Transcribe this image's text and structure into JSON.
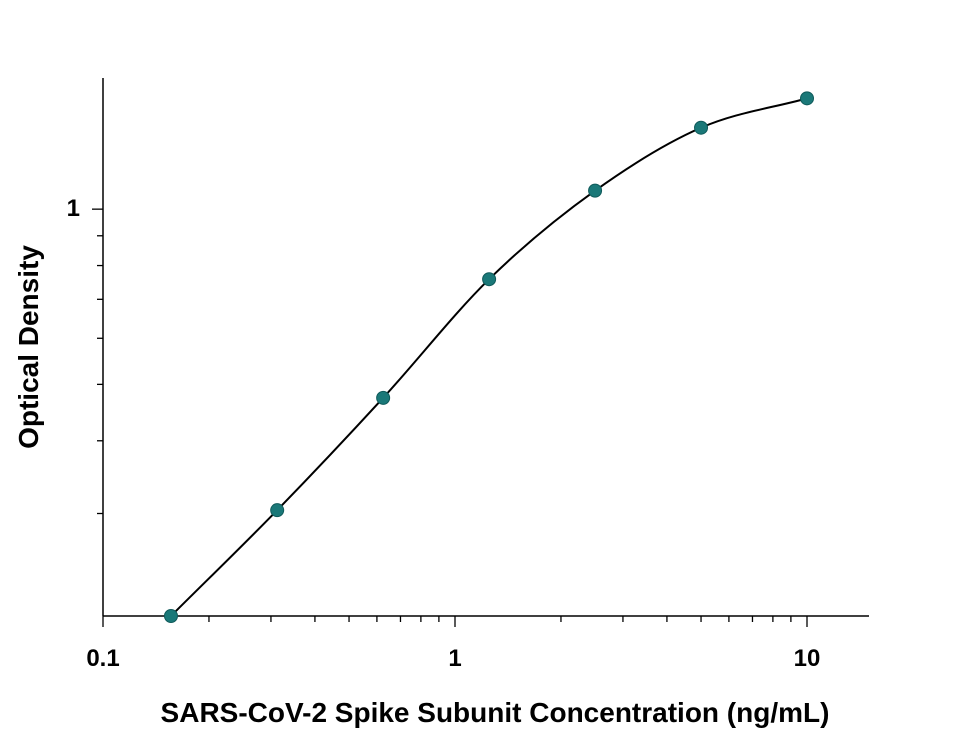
{
  "chart_data": {
    "type": "scatter",
    "title": "",
    "xlabel": "SARS-CoV-2 Spike Subunit Concentration (ng/mL)",
    "ylabel": "Optical Density",
    "x_scale": "log",
    "y_scale": "log",
    "xlim": [
      0.1,
      15
    ],
    "ylim": [
      0.2,
      1.68
    ],
    "x_tick_labels": [
      "0.1",
      "1",
      "10"
    ],
    "y_tick_labels": [
      "1"
    ],
    "grid": false,
    "legend": "none",
    "series": [
      {
        "x": [
          0.156,
          0.3125,
          0.625,
          1.25,
          2.5,
          5,
          10
        ],
        "y": [
          0.2,
          0.304,
          0.474,
          0.758,
          1.076,
          1.38,
          1.55
        ],
        "marker": "circle",
        "marker_color": "#1a7878",
        "fit": "4PL curve",
        "line_color": "#000000"
      }
    ]
  }
}
